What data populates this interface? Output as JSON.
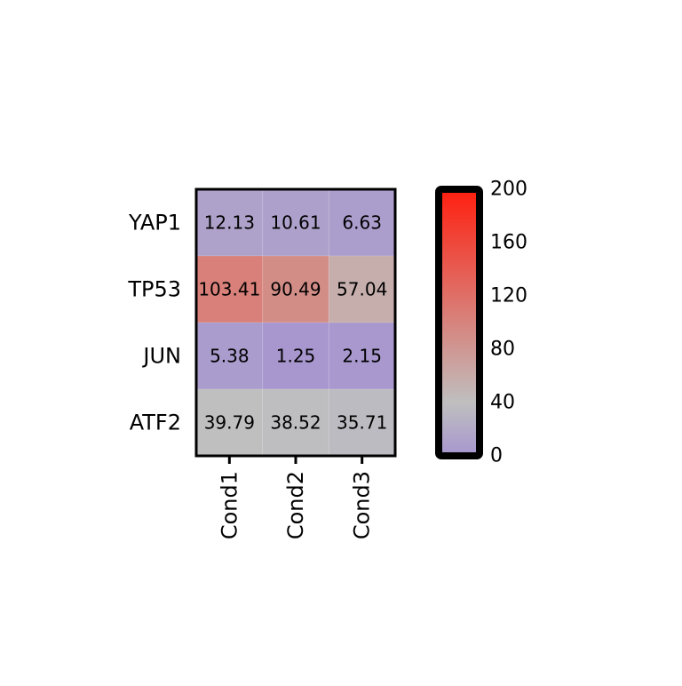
{
  "chart_data": {
    "type": "heatmap",
    "rows": [
      "YAP1",
      "TP53",
      "JUN",
      "ATF2"
    ],
    "columns": [
      "Cond1",
      "Cond2",
      "Cond3"
    ],
    "values": [
      [
        12.13,
        10.61,
        6.63
      ],
      [
        103.41,
        90.49,
        57.04
      ],
      [
        5.38,
        1.25,
        2.15
      ],
      [
        39.79,
        38.52,
        35.71
      ]
    ],
    "cell_labels": [
      [
        "12.13",
        "10.61",
        "6.63"
      ],
      [
        "103.41",
        "90.49",
        "57.04"
      ],
      [
        "5.38",
        "1.25",
        "2.15"
      ],
      [
        "39.79",
        "38.52",
        "35.71"
      ]
    ],
    "colorbar": {
      "range": [
        0,
        200
      ],
      "ticks": [
        "0",
        "40",
        "80",
        "120",
        "160",
        "200"
      ],
      "colors": [
        "#a796cf",
        "#bfbfbf",
        "#ff1f0f"
      ],
      "stops": [
        0,
        0.2,
        1
      ]
    }
  }
}
